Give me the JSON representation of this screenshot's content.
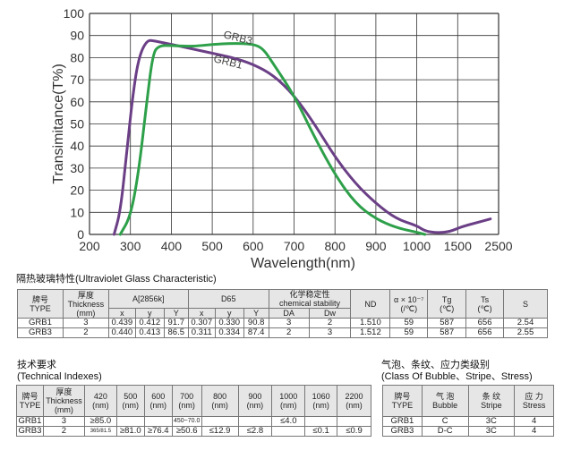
{
  "chart_data": {
    "type": "line",
    "ylabel": "Transimitance(T%)",
    "xlabel": "Wavelength(nm)",
    "x_ticks": [
      "200",
      "300",
      "400",
      "500",
      "600",
      "700",
      "800",
      "900",
      "1000",
      "1500",
      "2500"
    ],
    "y_ticks": [
      "0",
      "10",
      "20",
      "30",
      "40",
      "50",
      "60",
      "70",
      "80",
      "90",
      "100"
    ],
    "ylim": [
      0,
      100
    ],
    "grid": true,
    "series": [
      {
        "name": "GRB1",
        "color": "#6b3f86",
        "points": [
          [
            260,
            0
          ],
          [
            275,
            10
          ],
          [
            290,
            35
          ],
          [
            305,
            62
          ],
          [
            320,
            80
          ],
          [
            340,
            88
          ],
          [
            360,
            87.5
          ],
          [
            400,
            86
          ],
          [
            450,
            84
          ],
          [
            500,
            82
          ],
          [
            550,
            80
          ],
          [
            600,
            77
          ],
          [
            650,
            72
          ],
          [
            700,
            63
          ],
          [
            750,
            50
          ],
          [
            800,
            35
          ],
          [
            850,
            23
          ],
          [
            900,
            14
          ],
          [
            950,
            7
          ],
          [
            1000,
            4
          ],
          [
            1100,
            1.5
          ],
          [
            1250,
            0.7
          ],
          [
            1400,
            1.2
          ],
          [
            1600,
            3.5
          ],
          [
            1900,
            5
          ],
          [
            2300,
            7
          ]
        ]
      },
      {
        "name": "GRB3",
        "color": "#2ea04a",
        "points": [
          [
            275,
            0
          ],
          [
            300,
            8
          ],
          [
            320,
            28
          ],
          [
            340,
            60
          ],
          [
            355,
            82
          ],
          [
            370,
            85.5
          ],
          [
            400,
            85.5
          ],
          [
            450,
            85
          ],
          [
            500,
            86
          ],
          [
            550,
            86.5
          ],
          [
            600,
            86.2
          ],
          [
            625,
            84
          ],
          [
            650,
            77
          ],
          [
            700,
            63
          ],
          [
            750,
            44
          ],
          [
            800,
            27
          ],
          [
            850,
            14
          ],
          [
            900,
            7
          ],
          [
            950,
            3
          ],
          [
            1000,
            1
          ],
          [
            1100,
            0
          ]
        ]
      }
    ],
    "annotations": [
      "GRB3",
      "GRB1"
    ]
  },
  "uv": {
    "title": "隔热玻璃特性",
    "title_en": "(Ultraviolet Glass Characteristic)",
    "h": {
      "type_cn": "牌号",
      "type": "TYPE",
      "thick_cn": "厚度",
      "thick": "Thickness",
      "mm": "(mm)",
      "a": "A[2856k]",
      "d65": "D65",
      "chem_cn": "化学稳定性",
      "chem": "chemical stability",
      "nd": "ND",
      "alpha1": "α × 10⁻⁷",
      "alpha2": "(/℃)",
      "tg": "Tg",
      "tg2": "(℃)",
      "ts": "Ts",
      "ts2": "(℃)",
      "s": "S",
      "x": "x",
      "y": "y",
      "Y": "Y",
      "da": "DA",
      "dw": "Dw"
    },
    "rows": [
      [
        "GRB1",
        "3",
        "0.439",
        "0.412",
        "91.7",
        "0.307",
        "0.330",
        "90.8",
        "3",
        "2",
        "1.510",
        "59",
        "587",
        "656",
        "2.54"
      ],
      [
        "GRB3",
        "2",
        "0.440",
        "0.413",
        "86.5",
        "0.311",
        "0.334",
        "87.4",
        "2",
        "3",
        "1.512",
        "59",
        "587",
        "656",
        "2.55"
      ]
    ]
  },
  "tech": {
    "title": "技术要求",
    "title_en": "(Technical Indexes)",
    "h": {
      "type_cn": "牌号",
      "type": "TYPE",
      "thick_cn": "厚度",
      "thick": "Thickness",
      "mm": "(mm)",
      "nm": "(nm)",
      "cols": [
        "420",
        "500",
        "600",
        "700",
        "800",
        "900",
        "1000",
        "1060",
        "2200"
      ]
    },
    "rows": [
      [
        "GRB1",
        "3",
        "≥85.0",
        "",
        "",
        "450~70.0",
        "",
        "",
        "≤4.0",
        "",
        ""
      ],
      [
        "GRB3",
        "2",
        "365/81.5",
        "≥81.0",
        "≥76.4",
        "≥50.6",
        "≤12.9",
        "≤2.8",
        "",
        "≤0.1",
        "≤0.9"
      ]
    ]
  },
  "bubble": {
    "title": "气泡、条纹、应力类级别",
    "title_en": "(Class Of Bubble、Stripe、Stress)",
    "h": {
      "type_cn": "牌号",
      "type": "TYPE",
      "bubble_cn": "气 泡",
      "bubble": "Bubble",
      "stripe_cn": "条 纹",
      "stripe": "Stripe",
      "stress_cn": "应 力",
      "stress": "Stress"
    },
    "rows": [
      [
        "GRB1",
        "C",
        "3C",
        "4"
      ],
      [
        "GRB3",
        "D-C",
        "3C",
        "4"
      ]
    ]
  }
}
